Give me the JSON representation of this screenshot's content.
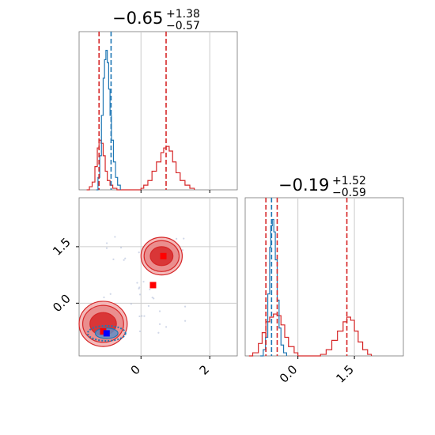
{
  "colors": {
    "red": "#d62728",
    "blue": "#1f77b4",
    "marker_blue": "#0000ff",
    "grid": "#cccccc"
  },
  "chart_data": [
    {
      "type": "histogram",
      "panel": "top-left",
      "title": {
        "main": "−0.65",
        "sup": "+1.38",
        "sub": "−0.57"
      },
      "xlim": [
        -1.8,
        2.8
      ],
      "grid_x": [
        0,
        2
      ],
      "vlines_red": [
        -1.22,
        0.73
      ],
      "vlines_blue": [
        -0.87
      ],
      "series": [
        {
          "color": "red",
          "values": [
            [
              -1.58,
              0
            ],
            [
              -1.5,
              0.02
            ],
            [
              -1.42,
              0.05
            ],
            [
              -1.34,
              0.15
            ],
            [
              -1.27,
              0.27
            ],
            [
              -1.22,
              0.32
            ],
            [
              -1.16,
              0.3
            ],
            [
              -1.1,
              0.22
            ],
            [
              -1.04,
              0.12
            ],
            [
              -0.98,
              0.06
            ],
            [
              -0.9,
              0.03
            ],
            [
              -0.82,
              0.01
            ],
            [
              -0.7,
              0
            ],
            [
              -0.05,
              0
            ],
            [
              0,
              0.01
            ],
            [
              0.08,
              0.03
            ],
            [
              0.2,
              0.06
            ],
            [
              0.32,
              0.12
            ],
            [
              0.45,
              0.18
            ],
            [
              0.58,
              0.24
            ],
            [
              0.66,
              0.27
            ],
            [
              0.73,
              0.28
            ],
            [
              0.82,
              0.25
            ],
            [
              0.92,
              0.18
            ],
            [
              1.02,
              0.11
            ],
            [
              1.14,
              0.06
            ],
            [
              1.28,
              0.03
            ],
            [
              1.42,
              0.01
            ],
            [
              1.55,
              0
            ]
          ]
        },
        {
          "color": "blue",
          "values": [
            [
              -1.3,
              0
            ],
            [
              -1.25,
              0.08
            ],
            [
              -1.2,
              0.22
            ],
            [
              -1.15,
              0.48
            ],
            [
              -1.1,
              0.72
            ],
            [
              -1.06,
              0.84
            ],
            [
              -1.02,
              0.9
            ],
            [
              -0.98,
              0.82
            ],
            [
              -0.94,
              0.65
            ],
            [
              -0.9,
              0.48
            ],
            [
              -0.86,
              0.32
            ],
            [
              -0.8,
              0.18
            ],
            [
              -0.74,
              0.08
            ],
            [
              -0.68,
              0.03
            ],
            [
              -0.6,
              0
            ]
          ]
        }
      ]
    },
    {
      "type": "scatter",
      "panel": "bottom-left",
      "xlim": [
        -1.8,
        2.8
      ],
      "ylim": [
        -1.4,
        2.8
      ],
      "xticks": [
        0,
        2
      ],
      "yticks": [
        0.0,
        1.5
      ],
      "xtick_labels": [
        "0",
        "2"
      ],
      "ytick_labels": [
        "0.0",
        "1.5"
      ],
      "red_markers": [
        [
          -1.1,
          -0.75
        ],
        [
          0.65,
          1.25
        ],
        [
          0.35,
          0.48
        ]
      ],
      "blue_marker": [
        -1.0,
        -0.8
      ],
      "red_clusters": [
        {
          "center": [
            -1.1,
            -0.55
          ],
          "rx": 0.7,
          "ry": 0.6
        },
        {
          "center": [
            0.6,
            1.25
          ],
          "rx": 0.6,
          "ry": 0.5
        }
      ],
      "blue_cluster": {
        "center": [
          -1.0,
          -0.8
        ],
        "rx": 0.55,
        "ry": 0.2
      }
    },
    {
      "type": "histogram",
      "panel": "bottom-right",
      "title": {
        "main": "−0.19",
        "sup": "+1.52",
        "sub": "−0.59"
      },
      "xlim": [
        -1.4,
        2.8
      ],
      "xticks": [
        0.0,
        1.5
      ],
      "xtick_labels": [
        "0.0",
        "1.5"
      ],
      "vlines_red": [
        -0.85,
        -0.55,
        1.3
      ],
      "vlines_blue": [
        -0.7
      ],
      "series": [
        {
          "color": "red",
          "values": [
            [
              -1.3,
              0
            ],
            [
              -1.2,
              0.02
            ],
            [
              -1.05,
              0.08
            ],
            [
              -0.95,
              0.15
            ],
            [
              -0.85,
              0.22
            ],
            [
              -0.75,
              0.25
            ],
            [
              -0.65,
              0.27
            ],
            [
              -0.55,
              0.26
            ],
            [
              -0.45,
              0.2
            ],
            [
              -0.35,
              0.12
            ],
            [
              -0.25,
              0.06
            ],
            [
              -0.1,
              0.02
            ],
            [
              0.0,
              0
            ],
            [
              0.5,
              0
            ],
            [
              0.6,
              0.01
            ],
            [
              0.75,
              0.04
            ],
            [
              0.9,
              0.1
            ],
            [
              1.05,
              0.16
            ],
            [
              1.2,
              0.22
            ],
            [
              1.3,
              0.25
            ],
            [
              1.4,
              0.23
            ],
            [
              1.5,
              0.16
            ],
            [
              1.6,
              0.09
            ],
            [
              1.72,
              0.04
            ],
            [
              1.85,
              0.01
            ],
            [
              1.95,
              0
            ]
          ]
        },
        {
          "color": "blue",
          "values": [
            [
              -1.0,
              0
            ],
            [
              -0.92,
              0.04
            ],
            [
              -0.86,
              0.12
            ],
            [
              -0.8,
              0.4
            ],
            [
              -0.75,
              0.7
            ],
            [
              -0.72,
              0.84
            ],
            [
              -0.68,
              0.88
            ],
            [
              -0.64,
              0.8
            ],
            [
              -0.6,
              0.62
            ],
            [
              -0.55,
              0.36
            ],
            [
              -0.5,
              0.18
            ],
            [
              -0.45,
              0.07
            ],
            [
              -0.38,
              0.02
            ],
            [
              -0.3,
              0
            ]
          ]
        }
      ]
    }
  ]
}
